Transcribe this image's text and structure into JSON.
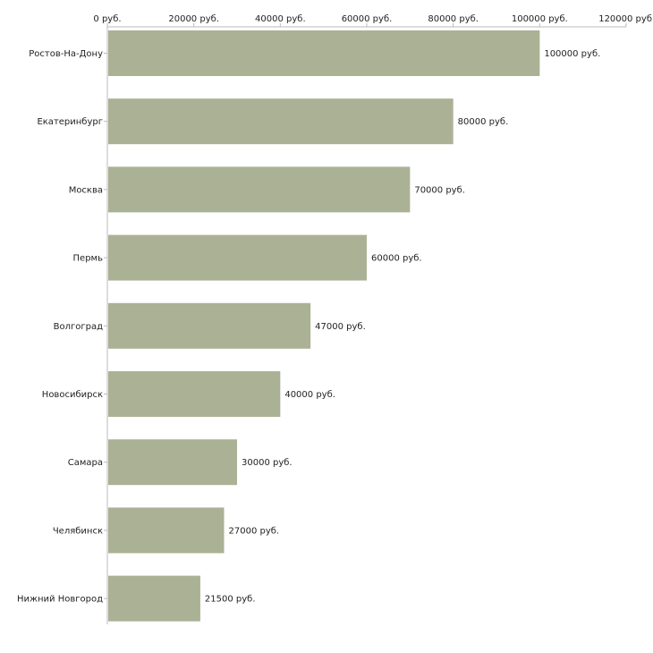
{
  "chart_data": {
    "type": "bar",
    "orientation": "horizontal",
    "title": "",
    "xlabel": "",
    "ylabel": "",
    "unit_suffix": " руб.",
    "xlim": [
      0,
      120000
    ],
    "xticks": [
      0,
      20000,
      40000,
      60000,
      80000,
      100000,
      120000
    ],
    "tick_labels": [
      "0 руб.",
      "20000 руб.",
      "40000 руб.",
      "60000 руб.",
      "80000 руб.",
      "100000 руб.",
      "120000 руб"
    ],
    "categories": [
      "Ростов-На-Дону",
      "Екатеринбург",
      "Москва",
      "Пермь",
      "Волгоград",
      "Новосибирск",
      "Самара",
      "Челябинск",
      "Нижний Новгород"
    ],
    "values": [
      100000,
      80000,
      70000,
      60000,
      47000,
      40000,
      30000,
      27000,
      21500
    ],
    "value_labels": [
      "100000 руб.",
      "80000 руб.",
      "70000 руб.",
      "60000 руб.",
      "47000 руб.",
      "40000 руб.",
      "30000 руб.",
      "27000 руб.",
      "21500 руб."
    ],
    "bar_color": "#abb195",
    "axis_color": "#bbbbbb",
    "grid": false,
    "legend": "none"
  }
}
